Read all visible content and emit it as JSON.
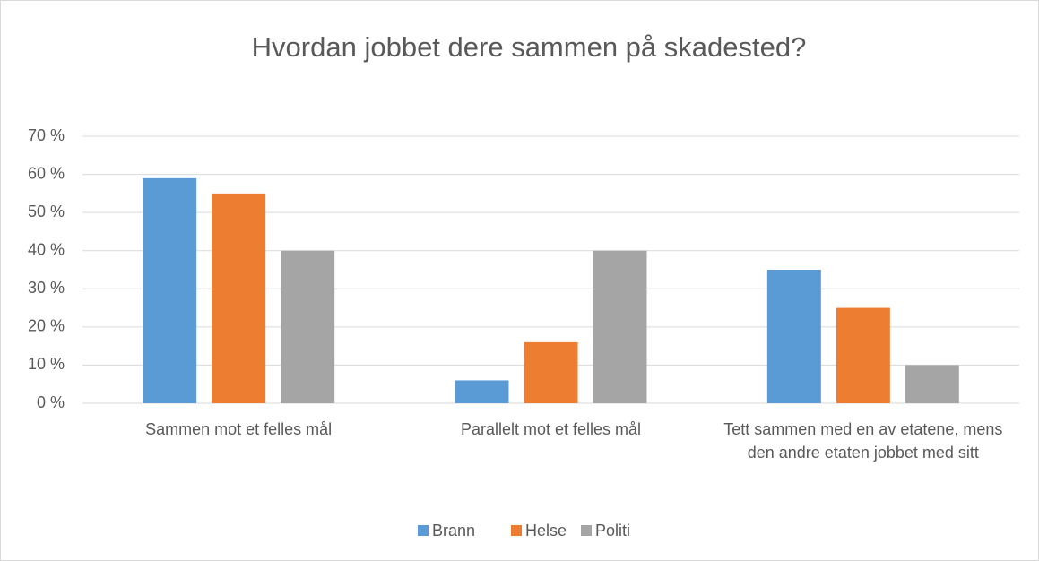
{
  "chart_data": {
    "type": "bar",
    "title": "Hvordan jobbet dere sammen på skadested?",
    "categories": [
      "Sammen mot et felles mål",
      "Parallelt mot et felles mål",
      "Tett sammen med en av etatene, mens den andre etaten jobbet med sitt"
    ],
    "series": [
      {
        "name": "Brann",
        "color": "#5b9bd5",
        "values": [
          59,
          6,
          35
        ]
      },
      {
        "name": "Helse",
        "color": "#ed7d31",
        "values": [
          55,
          16,
          25
        ]
      },
      {
        "name": "Politi",
        "color": "#a5a5a5",
        "values": [
          40,
          40,
          10
        ]
      }
    ],
    "ylim": [
      0,
      70
    ],
    "yticks": [
      {
        "value": 0,
        "label": "0 %"
      },
      {
        "value": 10,
        "label": "10 %"
      },
      {
        "value": 20,
        "label": "20 %"
      },
      {
        "value": 30,
        "label": "30 %"
      },
      {
        "value": 40,
        "label": "40 %"
      },
      {
        "value": 50,
        "label": "50 %"
      },
      {
        "value": 60,
        "label": "60 %"
      },
      {
        "value": 70,
        "label": "70 %"
      }
    ],
    "grid": true,
    "legend": "bottom"
  }
}
